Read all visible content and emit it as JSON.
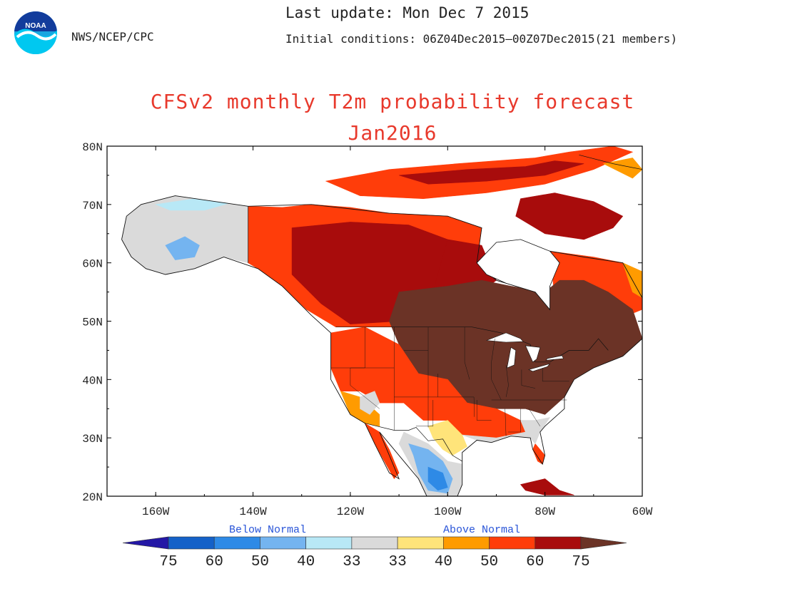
{
  "header": {
    "agency": "NWS/NCEP/CPC",
    "last_update": "Last update: Mon Dec 7 2015",
    "initial_conditions": "Initial conditions: 06Z04Dec2015–00Z07Dec2015(21 members)",
    "logo_text": "NOAA"
  },
  "title": {
    "line1": "CFSv2 monthly T2m probability forecast",
    "line2": "Jan2016",
    "color": "#e8392c"
  },
  "map": {
    "lat_labels": [
      "80N",
      "70N",
      "60N",
      "50N",
      "40N",
      "30N",
      "20N"
    ],
    "lon_labels": [
      "160W",
      "140W",
      "120W",
      "100W",
      "80W",
      "60W"
    ],
    "lat_range": [
      20,
      80
    ],
    "lon_range": [
      -170,
      -60
    ],
    "regions": [
      {
        "name": "alaska-near-normal",
        "category": "near",
        "points": [
          [
            -167,
            64
          ],
          [
            -166,
            68
          ],
          [
            -163,
            70
          ],
          [
            -156,
            71.5
          ],
          [
            -148,
            70.5
          ],
          [
            -141,
            69.7
          ],
          [
            -141,
            60
          ],
          [
            -146,
            61
          ],
          [
            -152,
            59
          ],
          [
            -158,
            58
          ],
          [
            -162,
            59
          ],
          [
            -165,
            61
          ]
        ]
      },
      {
        "name": "alaska-below-normal",
        "category": "b40",
        "points": [
          [
            -158,
            63
          ],
          [
            -154,
            64.5
          ],
          [
            -151,
            63
          ],
          [
            -152,
            61
          ],
          [
            -156,
            60.5
          ]
        ]
      },
      {
        "name": "alaska-north-slope-below",
        "category": "b33",
        "points": [
          [
            -160,
            70
          ],
          [
            -152,
            71
          ],
          [
            -145,
            70.2
          ],
          [
            -150,
            69
          ],
          [
            -157,
            69
          ]
        ]
      },
      {
        "name": "canada-northwest-above",
        "category": "a60",
        "points": [
          [
            -141,
            69.7
          ],
          [
            -134,
            69.5
          ],
          [
            -128,
            70
          ],
          [
            -120,
            69.5
          ],
          [
            -112,
            68.5
          ],
          [
            -100,
            68
          ],
          [
            -93,
            66
          ],
          [
            -94,
            60
          ],
          [
            -95,
            52
          ],
          [
            -103,
            49
          ],
          [
            -123,
            49
          ],
          [
            -129,
            52
          ],
          [
            -134,
            56
          ],
          [
            -139,
            59
          ],
          [
            -141,
            60
          ]
        ]
      },
      {
        "name": "canada-northwest-core",
        "category": "a75",
        "points": [
          [
            -132,
            66
          ],
          [
            -120,
            67
          ],
          [
            -108,
            66.5
          ],
          [
            -100,
            64
          ],
          [
            -103,
            55
          ],
          [
            -110,
            50
          ],
          [
            -120,
            49.5
          ],
          [
            -126,
            53
          ],
          [
            -132,
            58
          ]
        ]
      },
      {
        "name": "hudson-west-above",
        "category": "a75",
        "points": [
          [
            -100,
            64
          ],
          [
            -93,
            63
          ],
          [
            -90,
            57
          ],
          [
            -95,
            54
          ],
          [
            -103,
            55
          ]
        ]
      },
      {
        "name": "arctic-islands-above",
        "category": "a60",
        "points": [
          [
            -125,
            74
          ],
          [
            -112,
            76
          ],
          [
            -98,
            77
          ],
          [
            -82,
            78
          ],
          [
            -75,
            79
          ],
          [
            -66,
            80
          ],
          [
            -62,
            79
          ],
          [
            -70,
            76
          ],
          [
            -80,
            73.5
          ],
          [
            -92,
            72
          ],
          [
            -105,
            71
          ],
          [
            -118,
            71.5
          ]
        ]
      },
      {
        "name": "arctic-islands-core",
        "category": "a75",
        "points": [
          [
            -110,
            75
          ],
          [
            -96,
            76
          ],
          [
            -84,
            76.5
          ],
          [
            -78,
            77.5
          ],
          [
            -72,
            77
          ],
          [
            -80,
            75
          ],
          [
            -92,
            74
          ],
          [
            -104,
            73.5
          ]
        ]
      },
      {
        "name": "baffin-above",
        "category": "a75",
        "points": [
          [
            -85,
            71
          ],
          [
            -78,
            72
          ],
          [
            -70,
            70.5
          ],
          [
            -64,
            68
          ],
          [
            -66,
            66
          ],
          [
            -72,
            64
          ],
          [
            -80,
            65
          ],
          [
            -86,
            68
          ]
        ]
      },
      {
        "name": "greenland-edge-above",
        "category": "a50",
        "points": [
          [
            -68,
            77
          ],
          [
            -62,
            78
          ],
          [
            -60,
            76
          ],
          [
            -62,
            74.5
          ]
        ]
      },
      {
        "name": "quebec-labrador-above",
        "category": "a60",
        "points": [
          [
            -79,
            62
          ],
          [
            -70,
            61
          ],
          [
            -64,
            60
          ],
          [
            -60,
            58
          ],
          [
            -60,
            52
          ],
          [
            -66,
            50
          ],
          [
            -72,
            51
          ],
          [
            -78,
            54
          ]
        ]
      },
      {
        "name": "labrador-coast-above",
        "category": "a50",
        "points": [
          [
            -64,
            60
          ],
          [
            -60,
            58.5
          ],
          [
            -60,
            54
          ],
          [
            -62,
            55
          ],
          [
            -63,
            57.5
          ]
        ]
      },
      {
        "name": "east-canada-us-much-above",
        "category": "a75p",
        "points": [
          [
            -110,
            55
          ],
          [
            -100,
            56
          ],
          [
            -93,
            57
          ],
          [
            -87,
            56
          ],
          [
            -80,
            55
          ],
          [
            -77,
            57
          ],
          [
            -72,
            57
          ],
          [
            -67,
            55
          ],
          [
            -62,
            52
          ],
          [
            -60,
            47
          ],
          [
            -64,
            44
          ],
          [
            -70,
            42
          ],
          [
            -74,
            40
          ],
          [
            -76,
            37
          ],
          [
            -80,
            34
          ],
          [
            -84,
            35
          ],
          [
            -90,
            35
          ],
          [
            -96,
            36
          ],
          [
            -100,
            40
          ],
          [
            -106,
            41
          ],
          [
            -110,
            46
          ],
          [
            -112,
            50
          ]
        ]
      },
      {
        "name": "west-us-above",
        "category": "a60",
        "points": [
          [
            -124,
            48
          ],
          [
            -117,
            49
          ],
          [
            -110,
            46
          ],
          [
            -106,
            41
          ],
          [
            -100,
            40
          ],
          [
            -96,
            36
          ],
          [
            -90,
            35
          ],
          [
            -85,
            33
          ],
          [
            -84,
            31
          ],
          [
            -90,
            30
          ],
          [
            -97,
            30.5
          ],
          [
            -100,
            33
          ],
          [
            -105,
            33
          ],
          [
            -109,
            36
          ],
          [
            -114,
            36
          ],
          [
            -118,
            38
          ],
          [
            -122,
            38
          ],
          [
            -124,
            42
          ]
        ]
      },
      {
        "name": "southwest-above",
        "category": "a50",
        "points": [
          [
            -122,
            38
          ],
          [
            -118,
            37
          ],
          [
            -114,
            34
          ],
          [
            -114,
            32
          ],
          [
            -117,
            32.5
          ],
          [
            -120,
            34
          ]
        ]
      },
      {
        "name": "baja-above",
        "category": "a60",
        "points": [
          [
            -117,
            32.5
          ],
          [
            -114,
            31
          ],
          [
            -112,
            28
          ],
          [
            -110,
            24
          ],
          [
            -111,
            23
          ],
          [
            -113,
            26
          ],
          [
            -115,
            29
          ]
        ]
      },
      {
        "name": "florida-above",
        "category": "a60",
        "points": [
          [
            -82,
            29
          ],
          [
            -80,
            27
          ],
          [
            -80.5,
            25.5
          ],
          [
            -81.5,
            26
          ],
          [
            -82.5,
            28
          ]
        ]
      },
      {
        "name": "southeast-near-normal",
        "category": "near",
        "points": [
          [
            -97,
            30.5
          ],
          [
            -90,
            30
          ],
          [
            -84,
            31
          ],
          [
            -85,
            33
          ],
          [
            -82,
            33
          ],
          [
            -79,
            33.5
          ],
          [
            -81,
            31
          ],
          [
            -82,
            29
          ],
          [
            -83,
            30
          ],
          [
            -87,
            30.3
          ],
          [
            -91,
            29.2
          ],
          [
            -94,
            29.6
          ]
        ]
      },
      {
        "name": "mexico-near-normal",
        "category": "near",
        "points": [
          [
            -109,
            31
          ],
          [
            -104,
            29
          ],
          [
            -100,
            26
          ],
          [
            -97,
            25.5
          ],
          [
            -97,
            22
          ],
          [
            -98,
            20
          ],
          [
            -104,
            19.5
          ],
          [
            -106,
            23
          ],
          [
            -108,
            26
          ],
          [
            -110,
            29
          ]
        ]
      },
      {
        "name": "mexico-below-40",
        "category": "b40",
        "points": [
          [
            -108,
            29
          ],
          [
            -104,
            28
          ],
          [
            -101,
            26
          ],
          [
            -99,
            23
          ],
          [
            -100,
            20.5
          ],
          [
            -104,
            21
          ],
          [
            -106,
            24
          ],
          [
            -107,
            27
          ]
        ]
      },
      {
        "name": "mexico-below-50",
        "category": "b50",
        "points": [
          [
            -104,
            25
          ],
          [
            -101,
            24
          ],
          [
            -100,
            21.5
          ],
          [
            -102,
            21
          ],
          [
            -104,
            22.5
          ]
        ]
      },
      {
        "name": "texas-above",
        "category": "a40",
        "points": [
          [
            -100,
            33
          ],
          [
            -97,
            30.5
          ],
          [
            -96,
            28.5
          ],
          [
            -99,
            27
          ],
          [
            -101,
            28
          ],
          [
            -103,
            30
          ],
          [
            -104,
            32
          ]
        ]
      },
      {
        "name": "great-basin-near-normal",
        "category": "near",
        "points": [
          [
            -118,
            37
          ],
          [
            -115,
            38
          ],
          [
            -114,
            36
          ],
          [
            -116,
            34
          ],
          [
            -118,
            35
          ]
        ]
      },
      {
        "name": "caribbean-above",
        "category": "a75",
        "points": [
          [
            -85,
            22
          ],
          [
            -80,
            23
          ],
          [
            -77,
            21
          ],
          [
            -74,
            20.2
          ],
          [
            -80,
            20.2
          ],
          [
            -84,
            21
          ]
        ]
      }
    ],
    "colors": {
      "b75": "#2418a6",
      "b60": "#1461c8",
      "b50": "#2e8ae6",
      "b40": "#74b4f0",
      "b33": "#b8e8f6",
      "near": "#dadada",
      "a40": "#ffe47a",
      "a50": "#ff9b00",
      "a60": "#ff3d0a",
      "a75": "#a80c0c",
      "a75p": "#6b3326",
      "water": "#ffffff",
      "land_outline": "#111111"
    }
  },
  "legend": {
    "below_label": "Below Normal",
    "above_label": "Above Normal",
    "label_color": "#2a55d8",
    "numbers": [
      "75",
      "60",
      "50",
      "40",
      "33",
      "33",
      "40",
      "50",
      "60",
      "75"
    ],
    "categories": [
      "b75",
      "b60",
      "b50",
      "b40",
      "b33",
      "near",
      "a40",
      "a50",
      "a60",
      "a75",
      "a75p"
    ]
  }
}
